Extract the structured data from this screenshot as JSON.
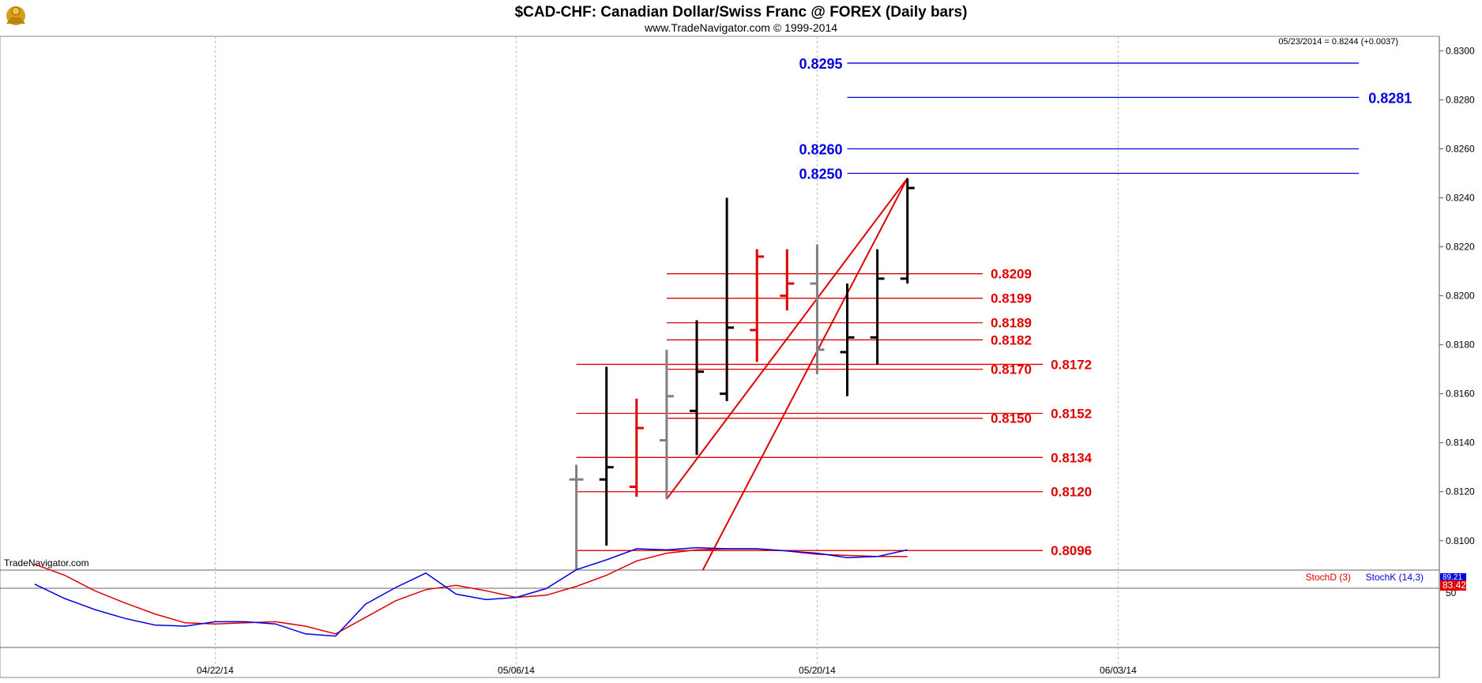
{
  "header": {
    "title": "$CAD-CHF:  Canadian Dollar/Swiss Franc @ FOREX  (Daily bars)",
    "subtitle": "www.TradeNavigator.com © 1999-2014",
    "last_quote": "05/23/2014 = 0.8244 (+0.0037)",
    "watermark": "TradeNavigator.com"
  },
  "chart_data": {
    "type": "bar",
    "price_axis": {
      "range": [
        0.8088,
        0.8304
      ],
      "ticks": [
        "0.8300",
        "0.8280",
        "0.8260",
        "0.8240",
        "0.8220",
        "0.8200",
        "0.8180",
        "0.8160",
        "0.8140",
        "0.8120",
        "0.8100"
      ]
    },
    "date_axis": {
      "labels": [
        {
          "label": "04/22/14",
          "day": 6
        },
        {
          "label": "05/06/14",
          "day": 16
        },
        {
          "label": "05/20/14",
          "day": 26
        },
        {
          "label": "06/03/14",
          "day": 36
        }
      ]
    },
    "ohlc_bars": [
      {
        "day": 18,
        "open": 0.8125,
        "high": 0.8131,
        "low": 0.8088,
        "close": 0.8125,
        "color": "#808080"
      },
      {
        "day": 19,
        "open": 0.8125,
        "high": 0.8171,
        "low": 0.8098,
        "close": 0.813,
        "color": "#000000"
      },
      {
        "day": 20,
        "open": 0.8122,
        "high": 0.8158,
        "low": 0.8118,
        "close": 0.8146,
        "color": "#e00000"
      },
      {
        "day": 21,
        "open": 0.8141,
        "high": 0.8178,
        "low": 0.8117,
        "close": 0.8159,
        "color": "#808080"
      },
      {
        "day": 22,
        "open": 0.8153,
        "high": 0.819,
        "low": 0.8135,
        "close": 0.8169,
        "color": "#000000"
      },
      {
        "day": 23,
        "open": 0.816,
        "high": 0.824,
        "low": 0.8157,
        "close": 0.8187,
        "color": "#000000"
      },
      {
        "day": 24,
        "open": 0.8186,
        "high": 0.8219,
        "low": 0.8173,
        "close": 0.8216,
        "color": "#e00000"
      },
      {
        "day": 25,
        "open": 0.82,
        "high": 0.8219,
        "low": 0.8194,
        "close": 0.8205,
        "color": "#e00000"
      },
      {
        "day": 26,
        "open": 0.8205,
        "high": 0.8221,
        "low": 0.8168,
        "close": 0.8178,
        "color": "#808080"
      },
      {
        "day": 27,
        "open": 0.8177,
        "high": 0.8205,
        "low": 0.8159,
        "close": 0.8183,
        "color": "#000000"
      },
      {
        "day": 28,
        "open": 0.8183,
        "high": 0.8219,
        "low": 0.8172,
        "close": 0.8207,
        "color": "#000000"
      },
      {
        "day": 29,
        "open": 0.8207,
        "high": 0.8248,
        "low": 0.8205,
        "close": 0.8244,
        "color": "#000000"
      }
    ],
    "trend_lines": [
      {
        "from": {
          "day": 21,
          "price": 0.8117
        },
        "to": {
          "day": 29,
          "price": 0.8248
        }
      },
      {
        "from": {
          "day": 22.2,
          "price": 0.8088
        },
        "to": {
          "day": 29,
          "price": 0.8248
        }
      }
    ],
    "levels_blue": [
      {
        "price": 0.8295,
        "label": "0.8295",
        "day_from": 27,
        "day_to": 44,
        "label_side": "left"
      },
      {
        "price": 0.8281,
        "label": "0.8281",
        "day_from": 27,
        "day_to": 44,
        "label_side": "right"
      },
      {
        "price": 0.826,
        "label": "0.8260",
        "day_from": 27,
        "day_to": 44,
        "label_side": "left"
      },
      {
        "price": 0.825,
        "label": "0.8250",
        "day_from": 27,
        "day_to": 44,
        "label_side": "left"
      }
    ],
    "levels_red": [
      {
        "price": 0.8209,
        "label": "0.8209",
        "day_from": 21,
        "day_to": 31.5
      },
      {
        "price": 0.8199,
        "label": "0.8199",
        "day_from": 21,
        "day_to": 31.5
      },
      {
        "price": 0.8189,
        "label": "0.8189",
        "day_from": 21,
        "day_to": 31.5
      },
      {
        "price": 0.8182,
        "label": "0.8182",
        "day_from": 21,
        "day_to": 31.5
      },
      {
        "price": 0.8172,
        "label": "0.8172",
        "day_from": 18,
        "day_to": 33.5
      },
      {
        "price": 0.817,
        "label": "0.8170",
        "day_from": 21,
        "day_to": 31.5
      },
      {
        "price": 0.8152,
        "label": "0.8152",
        "day_from": 18,
        "day_to": 33.5
      },
      {
        "price": 0.815,
        "label": "0.8150",
        "day_from": 21,
        "day_to": 31.5
      },
      {
        "price": 0.8134,
        "label": "0.8134",
        "day_from": 18,
        "day_to": 33.5
      },
      {
        "price": 0.812,
        "label": "0.8120",
        "day_from": 18,
        "day_to": 33.5
      },
      {
        "price": 0.8096,
        "label": "0.8096",
        "day_from": 18,
        "day_to": 33.5
      }
    ],
    "stochastic": {
      "legend_d": "StochD (3)",
      "legend_k": "StochK (14,3)",
      "axis_ticks": [
        "50"
      ],
      "value_k": "89.21",
      "value_d": "83.42",
      "days": [
        0,
        1,
        2,
        3,
        4,
        5,
        6,
        7,
        8,
        9,
        10,
        11,
        12,
        13,
        14,
        15,
        16,
        17,
        18,
        19,
        20,
        21,
        22,
        23,
        24,
        25,
        26,
        27,
        28,
        29
      ],
      "stoch_k": [
        58,
        45,
        35,
        27,
        21,
        20,
        24,
        24,
        22,
        13,
        11,
        40,
        55,
        68,
        49,
        44,
        46,
        54,
        71,
        80,
        90,
        89,
        91,
        90,
        90,
        88,
        86,
        82,
        83,
        89
      ],
      "stoch_d": [
        76,
        66,
        52,
        41,
        31,
        23,
        22,
        23,
        24,
        20,
        13,
        28,
        43,
        53,
        57,
        52,
        46,
        48,
        56,
        66,
        79,
        86,
        89,
        90,
        90,
        88,
        85,
        84,
        83,
        83
      ]
    }
  }
}
